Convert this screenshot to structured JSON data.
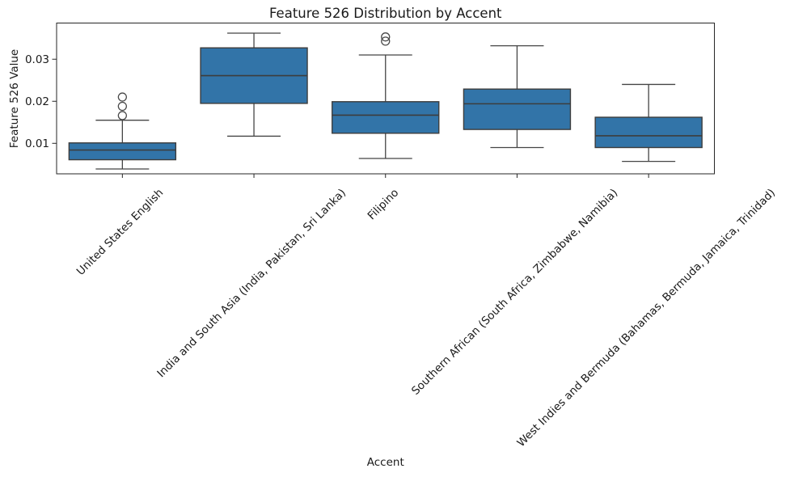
{
  "chart_data": {
    "type": "boxplot",
    "title": "Feature 526 Distribution by Accent",
    "xlabel": "Accent",
    "ylabel": "Feature 526 Value",
    "categories": [
      "United States English",
      "India and South Asia (India, Pakistan, Sri Lanka)",
      "Filipino",
      "Southern African (South Africa, Zimbabwe, Namibia)",
      "West Indies and Bermuda (Bahamas, Bermuda, Jamaica, Trinidad)"
    ],
    "boxes": [
      {
        "label": "United States English",
        "whisker_low": 0.0039,
        "q1": 0.0061,
        "median": 0.0084,
        "q3": 0.0101,
        "whisker_high": 0.0155,
        "outliers": [
          0.0166,
          0.0188,
          0.021
        ]
      },
      {
        "label": "India and South Asia (India, Pakistan, Sri Lanka)",
        "whisker_low": 0.0117,
        "q1": 0.0195,
        "median": 0.0261,
        "q3": 0.0327,
        "whisker_high": 0.0362,
        "outliers": []
      },
      {
        "label": "Filipino",
        "whisker_low": 0.0064,
        "q1": 0.0124,
        "median": 0.0167,
        "q3": 0.0199,
        "whisker_high": 0.031,
        "outliers": [
          0.0343,
          0.0353
        ]
      },
      {
        "label": "Southern African (South Africa, Zimbabwe, Namibia)",
        "whisker_low": 0.009,
        "q1": 0.0133,
        "median": 0.0194,
        "q3": 0.0229,
        "whisker_high": 0.0332,
        "outliers": []
      },
      {
        "label": "West Indies and Bermuda (Bahamas, Bermuda, Jamaica, Trinidad)",
        "whisker_low": 0.0057,
        "q1": 0.009,
        "median": 0.0118,
        "q3": 0.0162,
        "whisker_high": 0.024,
        "outliers": []
      }
    ],
    "yticks": [
      {
        "value": 0.01,
        "label": "0.01"
      },
      {
        "value": 0.02,
        "label": "0.02"
      },
      {
        "value": 0.03,
        "label": "0.03"
      }
    ],
    "ylim": [
      0.00275,
      0.0386
    ],
    "grid": false,
    "legend": "none",
    "colors": {
      "box_fill": "#3274a8",
      "box_edge": "#3d3d3d",
      "median_line": "#3d3d3d",
      "whisker": "#454545",
      "outlier_edge": "#4a4a4a",
      "spine": "#262626",
      "text": "#1a1a1a"
    }
  }
}
